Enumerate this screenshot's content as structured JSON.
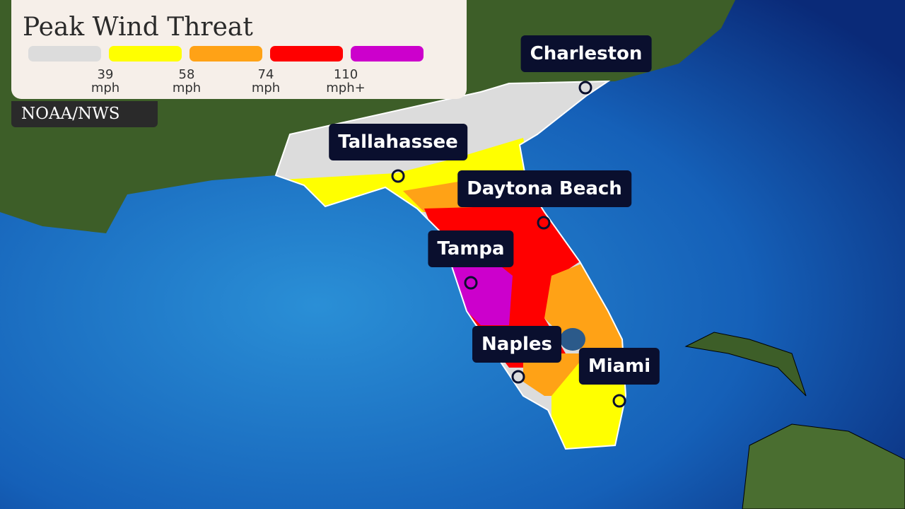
{
  "legend": {
    "title": "Peak Wind Threat",
    "swatches": [
      {
        "color": "#dcdcdc"
      },
      {
        "color": "#ffff00"
      },
      {
        "color": "#ffa216"
      },
      {
        "color": "#ff0000"
      },
      {
        "color": "#cc00cc"
      }
    ],
    "ticks": [
      {
        "value": "39",
        "unit": "mph"
      },
      {
        "value": "58",
        "unit": "mph"
      },
      {
        "value": "74",
        "unit": "mph"
      },
      {
        "value": "110",
        "unit": "mph+"
      }
    ]
  },
  "source": "NOAA/NWS",
  "cities": [
    "Charleston",
    "Tallahassee",
    "Daytona Beach",
    "Tampa",
    "Naples",
    "Miami"
  ]
}
